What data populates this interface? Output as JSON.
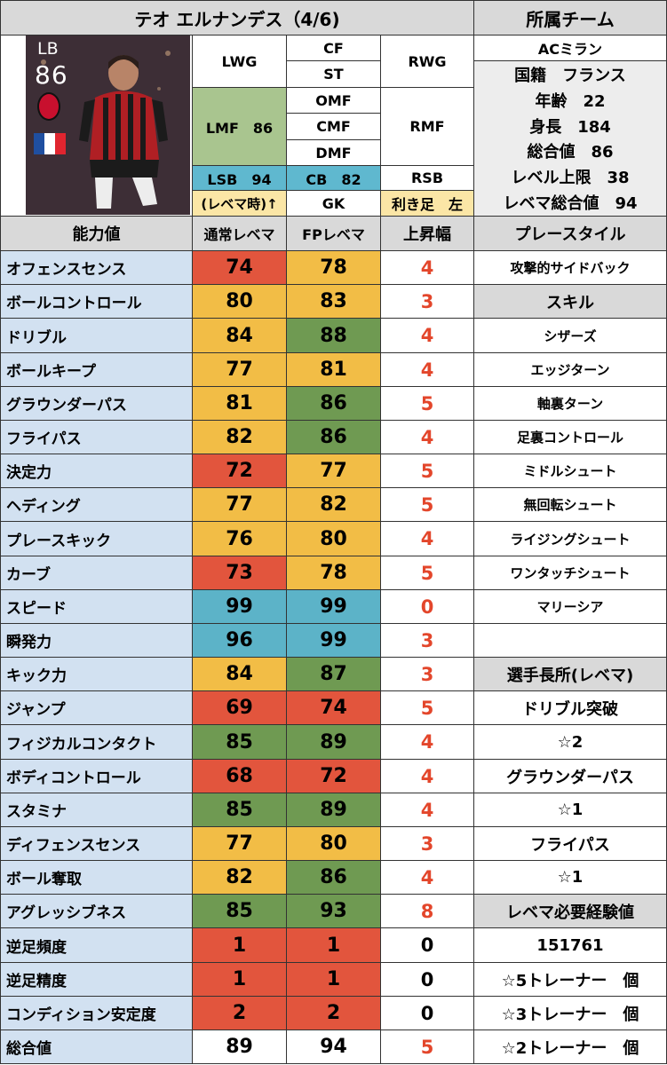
{
  "title": "テオ エルナンデス（4/6)",
  "team_header": "所属チーム",
  "team": "ACミラン",
  "player_card": {
    "position": "LB",
    "rating": "86"
  },
  "positions": {
    "lwg": "LWG",
    "cf": "CF",
    "st": "ST",
    "rwg": "RWG",
    "lmf": "LMF　86",
    "omf": "OMF",
    "cmf": "CMF",
    "dmf": "DMF",
    "rmf": "RMF",
    "lsb": "LSB　94",
    "cb": "CB　82",
    "rsb": "RSB",
    "note": "(レベマ時)↑",
    "gk": "GK",
    "foot": "利き足　左"
  },
  "profile": {
    "nationality": "国籍　フランス",
    "age": "年齢　22",
    "height": "身長　184",
    "overall": "総合値　86",
    "level_cap": "レベル上限　38",
    "max_overall": "レベマ総合値　94"
  },
  "headers": {
    "ability": "能力値",
    "normal": "通常レベマ",
    "fp": "FPレベマ",
    "increase": "上昇幅",
    "playstyle": "プレースタイル"
  },
  "colors": {
    "red": "#e2553d",
    "orange": "#f2bd46",
    "green": "#6f9a52",
    "blue": "#5cb3c8",
    "increase_red": "#e3462b"
  },
  "stats": [
    {
      "name": "オフェンスセンス",
      "normal": "74",
      "fp": "78",
      "inc": "4",
      "nc": "red",
      "fc": "orange",
      "ic": "red"
    },
    {
      "name": "ボールコントロール",
      "normal": "80",
      "fp": "83",
      "inc": "3",
      "nc": "orange",
      "fc": "orange",
      "ic": "red"
    },
    {
      "name": "ドリブル",
      "normal": "84",
      "fp": "88",
      "inc": "4",
      "nc": "orange",
      "fc": "green",
      "ic": "red"
    },
    {
      "name": "ボールキープ",
      "normal": "77",
      "fp": "81",
      "inc": "4",
      "nc": "orange",
      "fc": "orange",
      "ic": "red"
    },
    {
      "name": "グラウンダーパス",
      "normal": "81",
      "fp": "86",
      "inc": "5",
      "nc": "orange",
      "fc": "green",
      "ic": "red"
    },
    {
      "name": "フライパス",
      "normal": "82",
      "fp": "86",
      "inc": "4",
      "nc": "orange",
      "fc": "green",
      "ic": "red"
    },
    {
      "name": "決定力",
      "normal": "72",
      "fp": "77",
      "inc": "5",
      "nc": "red",
      "fc": "orange",
      "ic": "red"
    },
    {
      "name": "ヘディング",
      "normal": "77",
      "fp": "82",
      "inc": "5",
      "nc": "orange",
      "fc": "orange",
      "ic": "red"
    },
    {
      "name": "プレースキック",
      "normal": "76",
      "fp": "80",
      "inc": "4",
      "nc": "orange",
      "fc": "orange",
      "ic": "red"
    },
    {
      "name": "カーブ",
      "normal": "73",
      "fp": "78",
      "inc": "5",
      "nc": "red",
      "fc": "orange",
      "ic": "red"
    },
    {
      "name": "スピード",
      "normal": "99",
      "fp": "99",
      "inc": "0",
      "nc": "blue",
      "fc": "blue",
      "ic": "red"
    },
    {
      "name": "瞬発力",
      "normal": "96",
      "fp": "99",
      "inc": "3",
      "nc": "blue",
      "fc": "blue",
      "ic": "red"
    },
    {
      "name": "キック力",
      "normal": "84",
      "fp": "87",
      "inc": "3",
      "nc": "orange",
      "fc": "green",
      "ic": "red"
    },
    {
      "name": "ジャンプ",
      "normal": "69",
      "fp": "74",
      "inc": "5",
      "nc": "red",
      "fc": "red",
      "ic": "red"
    },
    {
      "name": "フィジカルコンタクト",
      "normal": "85",
      "fp": "89",
      "inc": "4",
      "nc": "green",
      "fc": "green",
      "ic": "red"
    },
    {
      "name": "ボディコントロール",
      "normal": "68",
      "fp": "72",
      "inc": "4",
      "nc": "red",
      "fc": "red",
      "ic": "red"
    },
    {
      "name": "スタミナ",
      "normal": "85",
      "fp": "89",
      "inc": "4",
      "nc": "green",
      "fc": "green",
      "ic": "red"
    },
    {
      "name": "ディフェンスセンス",
      "normal": "77",
      "fp": "80",
      "inc": "3",
      "nc": "orange",
      "fc": "orange",
      "ic": "red"
    },
    {
      "name": "ボール奪取",
      "normal": "82",
      "fp": "86",
      "inc": "4",
      "nc": "orange",
      "fc": "green",
      "ic": "red"
    },
    {
      "name": "アグレッシブネス",
      "normal": "85",
      "fp": "93",
      "inc": "8",
      "nc": "green",
      "fc": "green",
      "ic": "red"
    },
    {
      "name": "逆足頻度",
      "normal": "1",
      "fp": "1",
      "inc": "0",
      "nc": "red",
      "fc": "red",
      "ic": "black"
    },
    {
      "name": "逆足精度",
      "normal": "1",
      "fp": "1",
      "inc": "0",
      "nc": "red",
      "fc": "red",
      "ic": "black"
    },
    {
      "name": "コンディション安定度",
      "normal": "2",
      "fp": "2",
      "inc": "0",
      "nc": "red",
      "fc": "red",
      "ic": "black"
    },
    {
      "name": "総合値",
      "normal": "89",
      "fp": "94",
      "inc": "5",
      "nc": "none",
      "fc": "none",
      "ic": "red"
    }
  ],
  "right_column": [
    {
      "text": "攻撃的サイドバック",
      "kind": "item"
    },
    {
      "text": "スキル",
      "kind": "header"
    },
    {
      "text": "シザーズ",
      "kind": "item"
    },
    {
      "text": "エッジターン",
      "kind": "item"
    },
    {
      "text": "軸裏ターン",
      "kind": "item"
    },
    {
      "text": "足裏コントロール",
      "kind": "item"
    },
    {
      "text": "ミドルシュート",
      "kind": "item"
    },
    {
      "text": "無回転シュート",
      "kind": "item"
    },
    {
      "text": "ライジングシュート",
      "kind": "item"
    },
    {
      "text": "ワンタッチシュート",
      "kind": "item"
    },
    {
      "text": "マリーシア",
      "kind": "item"
    },
    {
      "text": "",
      "kind": "item"
    },
    {
      "text": "選手長所(レベマ)",
      "kind": "header"
    },
    {
      "text": "ドリブル突破",
      "kind": "big"
    },
    {
      "text": "☆2",
      "kind": "big"
    },
    {
      "text": "グラウンダーパス",
      "kind": "big"
    },
    {
      "text": "☆1",
      "kind": "big"
    },
    {
      "text": "フライパス",
      "kind": "big"
    },
    {
      "text": "☆1",
      "kind": "big"
    },
    {
      "text": "レベマ必要経験値",
      "kind": "header"
    },
    {
      "text": "151761",
      "kind": "big"
    },
    {
      "text": "☆5トレーナー　個",
      "kind": "big"
    },
    {
      "text": "☆3トレーナー　個",
      "kind": "big"
    },
    {
      "text": "☆2トレーナー　個",
      "kind": "big"
    }
  ]
}
